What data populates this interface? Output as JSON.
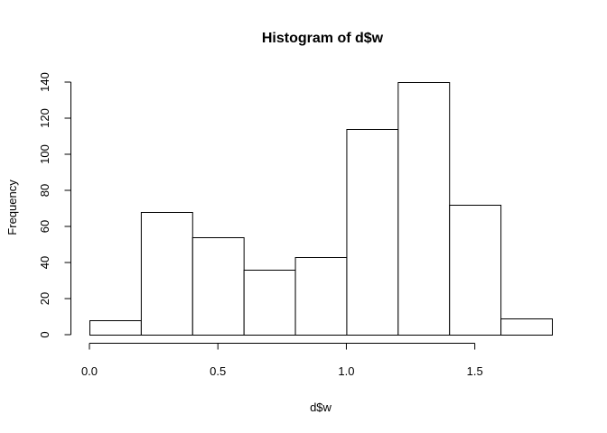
{
  "chart_data": {
    "type": "bar",
    "title": "Histogram of d$w",
    "xlabel": "d$w",
    "ylabel": "Frequency",
    "bins": [
      {
        "start": 0.0,
        "end": 0.2,
        "count": 8
      },
      {
        "start": 0.2,
        "end": 0.4,
        "count": 68
      },
      {
        "start": 0.4,
        "end": 0.6,
        "count": 54
      },
      {
        "start": 0.6,
        "end": 0.8,
        "count": 36
      },
      {
        "start": 0.8,
        "end": 1.0,
        "count": 43
      },
      {
        "start": 1.0,
        "end": 1.2,
        "count": 114
      },
      {
        "start": 1.2,
        "end": 1.4,
        "count": 140
      },
      {
        "start": 1.4,
        "end": 1.6,
        "count": 72
      },
      {
        "start": 1.6,
        "end": 1.8,
        "count": 9
      }
    ],
    "x_ticks": [
      {
        "value": 0.0,
        "label": "0.0"
      },
      {
        "value": 0.5,
        "label": "0.5"
      },
      {
        "value": 1.0,
        "label": "1.0"
      },
      {
        "value": 1.5,
        "label": "1.5"
      }
    ],
    "y_ticks": [
      {
        "value": 0,
        "label": "0"
      },
      {
        "value": 20,
        "label": "20"
      },
      {
        "value": 40,
        "label": "40"
      },
      {
        "value": 60,
        "label": "60"
      },
      {
        "value": 80,
        "label": "80"
      },
      {
        "value": 100,
        "label": "100"
      },
      {
        "value": 120,
        "label": "120"
      },
      {
        "value": 140,
        "label": "140"
      }
    ],
    "xlim": [
      0.0,
      1.8
    ],
    "ylim": [
      0,
      140
    ],
    "grid": false,
    "legend": "none",
    "colors": {
      "bar_fill": "#ffffff",
      "bar_stroke": "#000000"
    }
  }
}
